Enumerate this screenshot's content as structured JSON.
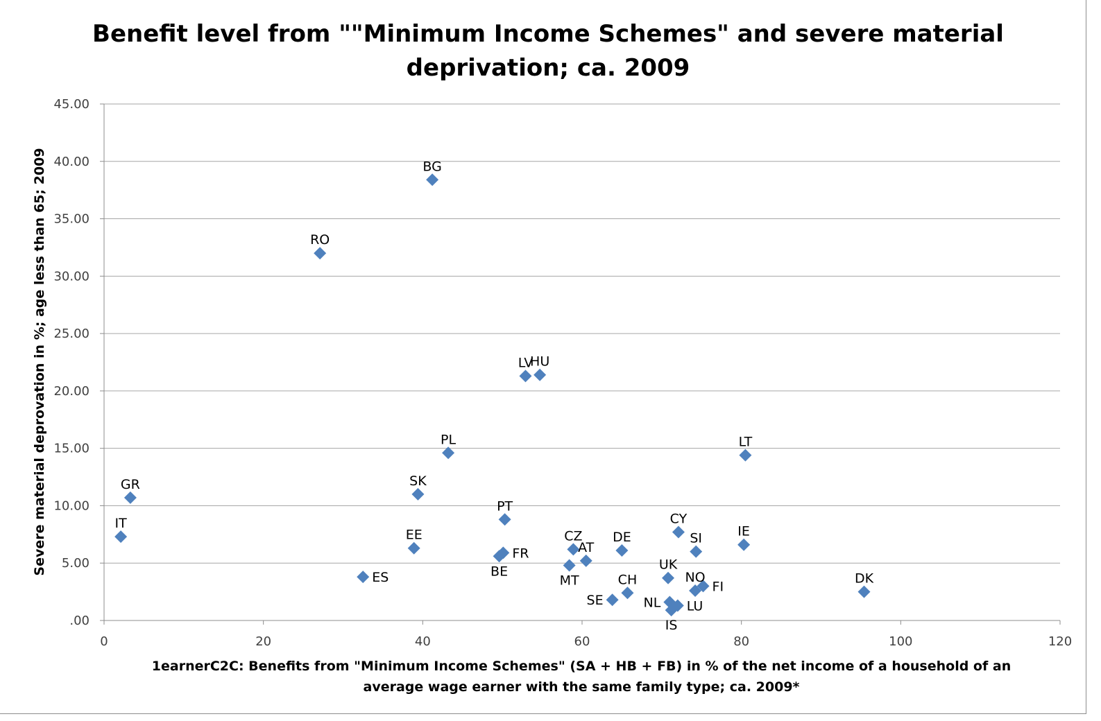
{
  "chart_data": {
    "type": "scatter",
    "title_lines": [
      "Benefit level from \"\"Minimum Income Schemes\" and severe material",
      "deprivation; ca. 2009"
    ],
    "xlabel_lines": [
      "1earnerC2C: Benefits from \"Minimum Income Schemes\" (SA + HB + FB) in % of the net income of a household  of an",
      "average wage earner with the same family type; ca. 2009*"
    ],
    "ylabel": "Severe material deprovation in %; age less than 65; 2009",
    "xlim": [
      0,
      120
    ],
    "ylim": [
      0,
      45
    ],
    "x_ticks": [
      "0",
      "20",
      "40",
      "60",
      "80",
      "100",
      "120"
    ],
    "y_ticks": [
      ".00",
      "5.00",
      "10.00",
      "15.00",
      "20.00",
      "25.00",
      "30.00",
      "35.00",
      "40.00",
      "45.00"
    ],
    "grid": "horizontal",
    "marker_color": "#4F81BD",
    "points": [
      {
        "label": "BG",
        "x": 41.2,
        "y": 38.4,
        "pos": "above"
      },
      {
        "label": "RO",
        "x": 27.1,
        "y": 32.0,
        "pos": "above"
      },
      {
        "label": "LV",
        "x": 52.9,
        "y": 21.3,
        "pos": "above"
      },
      {
        "label": "HU",
        "x": 54.7,
        "y": 21.4,
        "pos": "above"
      },
      {
        "label": "PL",
        "x": 43.2,
        "y": 14.6,
        "pos": "above"
      },
      {
        "label": "LT",
        "x": 80.5,
        "y": 14.4,
        "pos": "above"
      },
      {
        "label": "GR",
        "x": 3.3,
        "y": 10.7,
        "pos": "above"
      },
      {
        "label": "SK",
        "x": 39.4,
        "y": 11.0,
        "pos": "above"
      },
      {
        "label": "IT",
        "x": 2.1,
        "y": 7.3,
        "pos": "above"
      },
      {
        "label": "PT",
        "x": 50.3,
        "y": 8.8,
        "pos": "above"
      },
      {
        "label": "CY",
        "x": 72.1,
        "y": 7.7,
        "pos": "above"
      },
      {
        "label": "IE",
        "x": 80.3,
        "y": 6.6,
        "pos": "above"
      },
      {
        "label": "EE",
        "x": 38.9,
        "y": 6.3,
        "pos": "above"
      },
      {
        "label": "CZ",
        "x": 58.9,
        "y": 6.2,
        "pos": "above"
      },
      {
        "label": "DE",
        "x": 65.0,
        "y": 6.1,
        "pos": "above"
      },
      {
        "label": "SI",
        "x": 74.3,
        "y": 6.0,
        "pos": "above"
      },
      {
        "label": "FR",
        "x": 50.1,
        "y": 5.9,
        "pos": "right"
      },
      {
        "label": "BE",
        "x": 49.6,
        "y": 5.6,
        "pos": "below"
      },
      {
        "label": "AT",
        "x": 60.5,
        "y": 5.2,
        "pos": "above"
      },
      {
        "label": "MT",
        "x": 58.4,
        "y": 4.8,
        "pos": "below"
      },
      {
        "label": "UK",
        "x": 70.8,
        "y": 3.7,
        "pos": "above"
      },
      {
        "label": "ES",
        "x": 32.5,
        "y": 3.8,
        "pos": "right"
      },
      {
        "label": "NO",
        "x": 74.2,
        "y": 2.6,
        "pos": "above"
      },
      {
        "label": "FI",
        "x": 75.2,
        "y": 3.0,
        "pos": "right"
      },
      {
        "label": "DK",
        "x": 95.4,
        "y": 2.5,
        "pos": "above"
      },
      {
        "label": "CH",
        "x": 65.7,
        "y": 2.4,
        "pos": "above"
      },
      {
        "label": "SE",
        "x": 63.8,
        "y": 1.8,
        "pos": "left"
      },
      {
        "label": "NL",
        "x": 71.0,
        "y": 1.6,
        "pos": "left"
      },
      {
        "label": "LU",
        "x": 72.0,
        "y": 1.3,
        "pos": "right"
      },
      {
        "label": "IS",
        "x": 71.2,
        "y": 0.9,
        "pos": "below"
      }
    ]
  }
}
